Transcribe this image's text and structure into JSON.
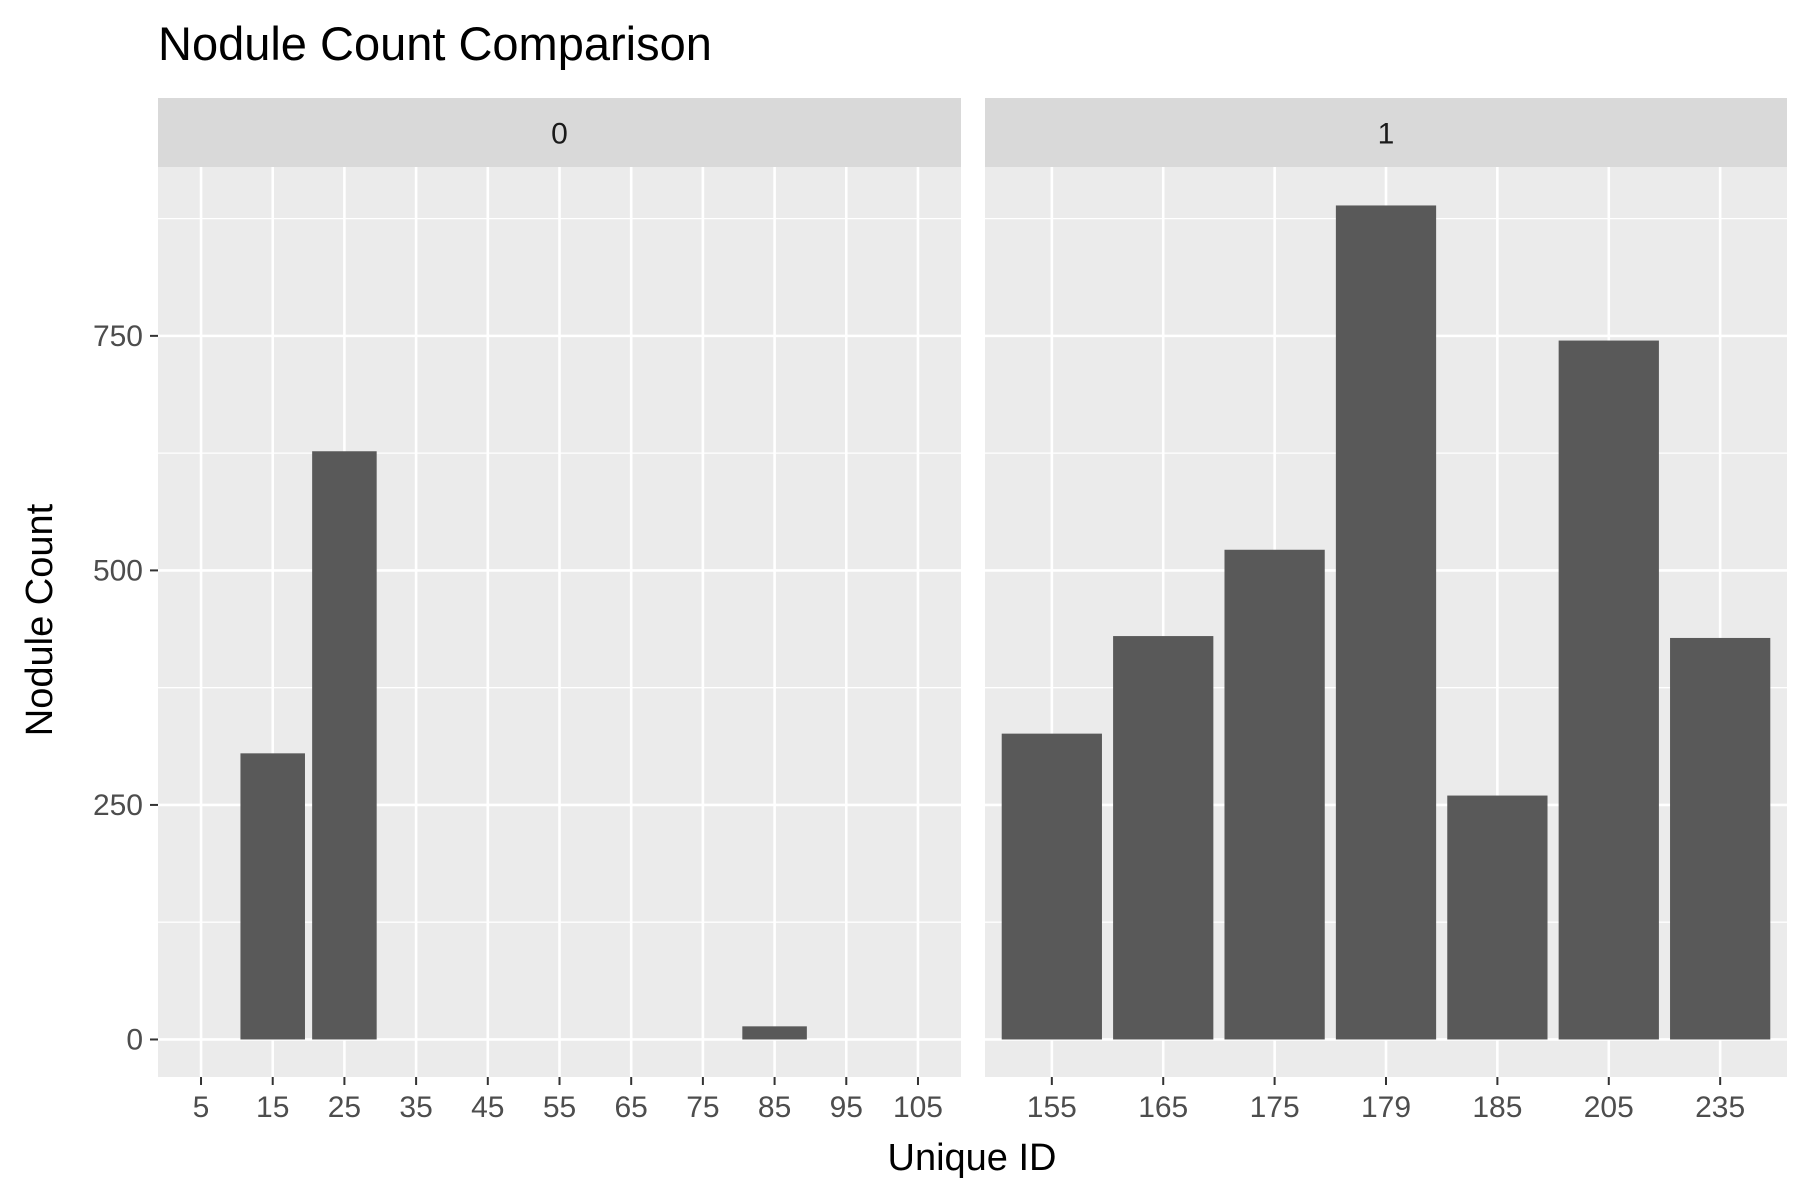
{
  "chart_data": {
    "type": "bar",
    "title": "Nodule Count Comparison",
    "xlabel": "Unique ID",
    "ylabel": "Nodule Count",
    "ylim": [
      -40,
      930
    ],
    "y_ticks": [
      0,
      250,
      500,
      750
    ],
    "grid": true,
    "facets": [
      {
        "strip_label": "0",
        "x_scale": "continuous",
        "xlim": [
          -1,
          111
        ],
        "x_ticks": [
          5,
          15,
          25,
          35,
          45,
          55,
          65,
          75,
          85,
          95,
          105
        ],
        "bar_width": 9,
        "bars": [
          {
            "x": 15,
            "value": 305
          },
          {
            "x": 25,
            "value": 627
          },
          {
            "x": 85,
            "value": 14
          }
        ]
      },
      {
        "strip_label": "1",
        "x_scale": "discrete",
        "categories": [
          "155",
          "165",
          "175",
          "179",
          "185",
          "205",
          "235"
        ],
        "values": [
          326,
          430,
          522,
          889,
          260,
          745,
          428
        ]
      }
    ]
  },
  "colors": {
    "panel_background": "#ebebeb",
    "grid_major": "#ffffff",
    "strip_background": "#d9d9d9",
    "bar_fill": "#595959",
    "tick_text": "#4d4d4d"
  }
}
